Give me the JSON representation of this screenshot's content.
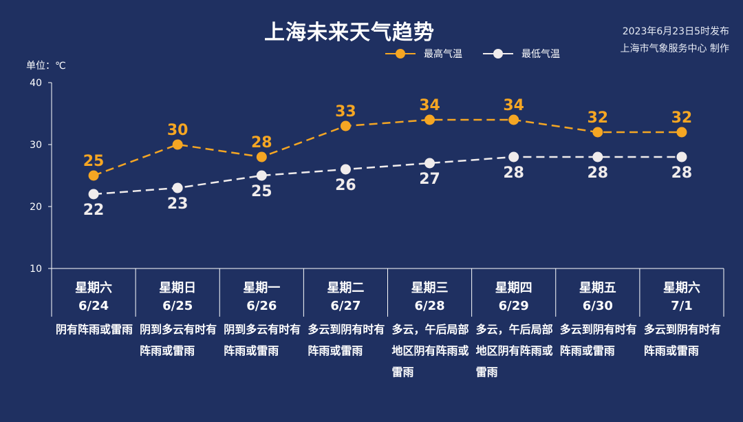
{
  "header": {
    "title": "上海未来天气趋势",
    "publish_time": "2023年6月23日5时发布",
    "publisher": "上海市气象服务中心 制作",
    "unit": "单位：℃"
  },
  "colors": {
    "background": "#1f3061",
    "high": "#f5a623",
    "low": "#f0ecec",
    "axis": "#ffffff",
    "grid_divider": "#ffffff"
  },
  "chart_data": {
    "type": "line",
    "title": "上海未来天气趋势",
    "ylabel": "单位：℃",
    "xlabel": "",
    "ylim": [
      10,
      40
    ],
    "yticks": [
      10,
      20,
      30,
      40
    ],
    "grid": false,
    "legend_position": "top-right",
    "line_style": "dashed",
    "categories": [
      "6/24",
      "6/25",
      "6/26",
      "6/27",
      "6/28",
      "6/29",
      "6/30",
      "7/1"
    ],
    "series": [
      {
        "name": "最高气温",
        "values": [
          25,
          30,
          28,
          33,
          34,
          34,
          32,
          32
        ]
      },
      {
        "name": "最低气温",
        "values": [
          22,
          23,
          25,
          26,
          27,
          28,
          28,
          28
        ]
      }
    ]
  },
  "days": [
    {
      "weekday": "星期六",
      "date": "6/24",
      "weather": "阴有阵雨或雷雨"
    },
    {
      "weekday": "星期日",
      "date": "6/25",
      "weather": "阴到多云有时有阵雨或雷雨"
    },
    {
      "weekday": "星期一",
      "date": "6/26",
      "weather": "阴到多云有时有阵雨或雷雨"
    },
    {
      "weekday": "星期二",
      "date": "6/27",
      "weather": "多云到阴有时有阵雨或雷雨"
    },
    {
      "weekday": "星期三",
      "date": "6/28",
      "weather": "多云，午后局部地区阴有阵雨或雷雨"
    },
    {
      "weekday": "星期四",
      "date": "6/29",
      "weather": "多云，午后局部地区阴有阵雨或雷雨"
    },
    {
      "weekday": "星期五",
      "date": "6/30",
      "weather": "多云到阴有时有阵雨或雷雨"
    },
    {
      "weekday": "星期六",
      "date": "7/1",
      "weather": "多云到阴有时有阵雨或雷雨"
    }
  ]
}
